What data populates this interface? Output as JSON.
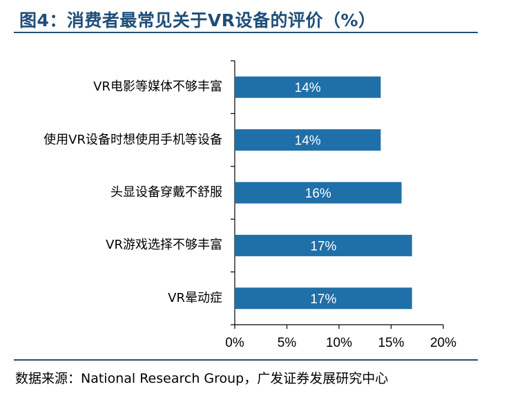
{
  "figure": {
    "title": "图4：消费者最常见关于VR设备的评价（%）",
    "source": "数据来源：National Research Group，广发证券发展研究中心"
  },
  "chart_data": {
    "type": "bar",
    "orientation": "horizontal",
    "categories": [
      "VR电影等媒体不够丰富",
      "使用VR设备时想使用手机等设备",
      "头显设备穿戴不舒服",
      "VR游戏选择不够丰富",
      "VR晕动症"
    ],
    "values": [
      14,
      14,
      16,
      17,
      17
    ],
    "data_labels": [
      "14%",
      "14%",
      "16%",
      "17%",
      "17%"
    ],
    "xlim": [
      0,
      20
    ],
    "xticks": [
      0,
      5,
      10,
      15,
      20
    ],
    "xtick_labels": [
      "0%",
      "5%",
      "10%",
      "15%",
      "20%"
    ],
    "grid": false,
    "legend": "none",
    "bar_color": "#1f6fa8",
    "label_color": "#ffffff"
  }
}
